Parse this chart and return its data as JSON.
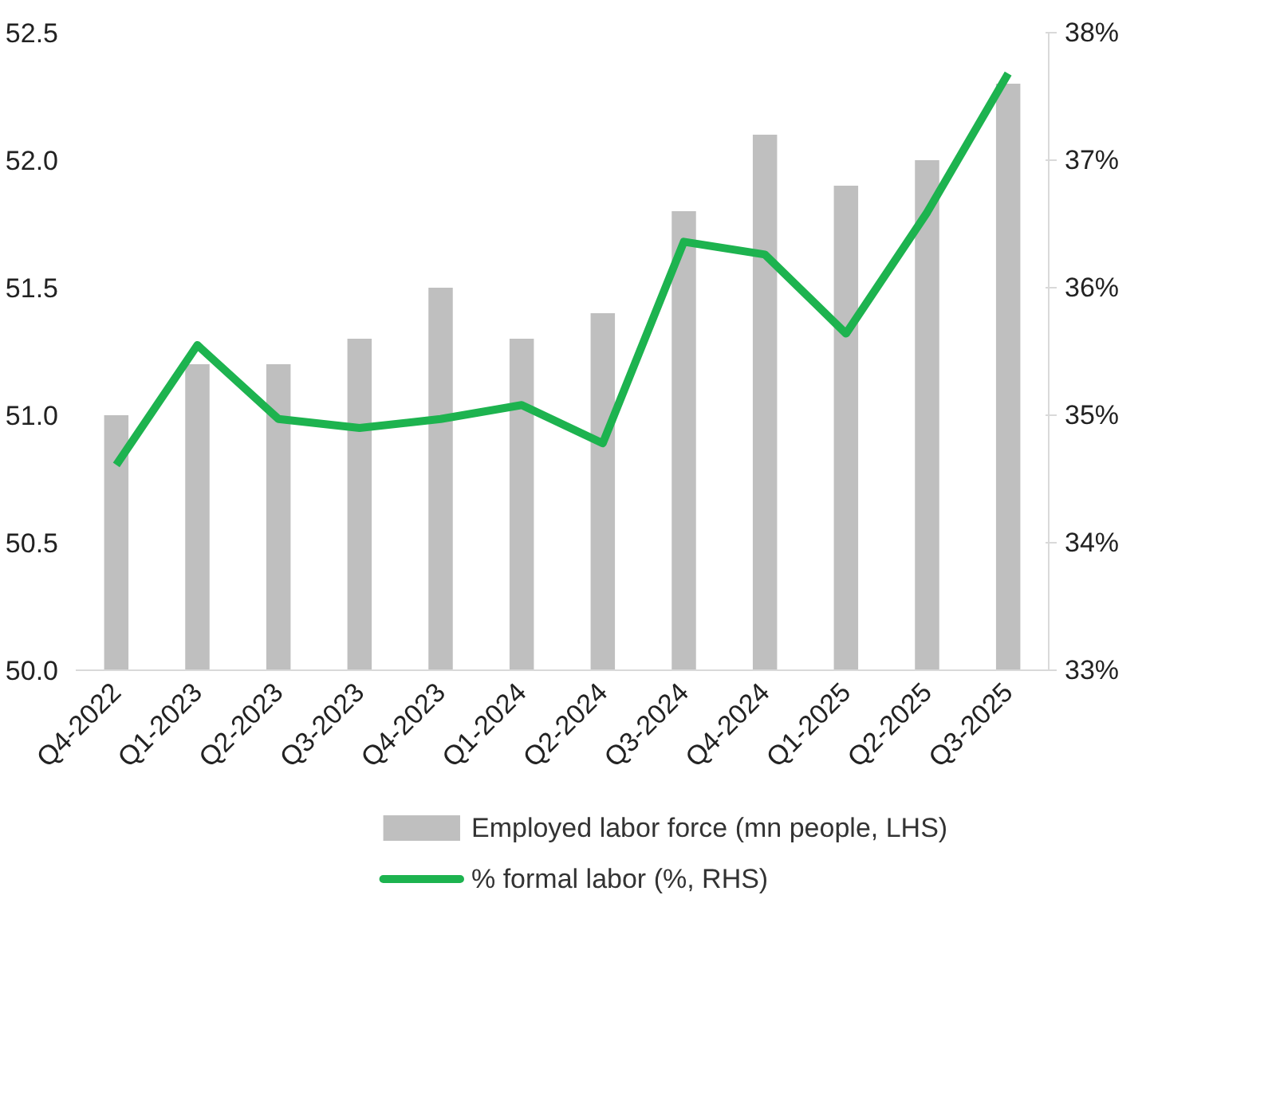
{
  "chart_data": {
    "type": "bar",
    "categories": [
      "Q4-2022",
      "Q1-2023",
      "Q2-2023",
      "Q3-2023",
      "Q4-2023",
      "Q1-2024",
      "Q2-2024",
      "Q3-2024",
      "Q4-2024",
      "Q1-2025",
      "Q2-2025",
      "Q3-2025"
    ],
    "series": [
      {
        "name": "Employed labor force (mn people, LHS)",
        "color": "#bfbfbf",
        "values": [
          51.0,
          51.2,
          51.2,
          51.3,
          51.5,
          51.3,
          51.4,
          51.8,
          52.1,
          51.9,
          52.0,
          52.3
        ]
      },
      {
        "name": "% formal labor (%, RHS)",
        "color": "#1db34f",
        "type": "line",
        "axis": "y2",
        "values": [
          34.61,
          35.55,
          34.97,
          34.9,
          34.97,
          35.08,
          34.78,
          36.36,
          36.26,
          35.64,
          36.59,
          37.68
        ]
      }
    ],
    "ylim": [
      50,
      52.5
    ],
    "yticks": [
      {
        "value": 50,
        "label": "50.0"
      },
      {
        "value": 50.5,
        "label": "50.5"
      },
      {
        "value": 51,
        "label": "51.0"
      },
      {
        "value": 51.5,
        "label": "51.5"
      },
      {
        "value": 52,
        "label": "52.0"
      },
      {
        "value": 52.5,
        "label": "52.5"
      }
    ],
    "y2lim": [
      33,
      38
    ],
    "y2ticks": [
      {
        "value": 33,
        "label": "33%"
      },
      {
        "value": 34,
        "label": "34%"
      },
      {
        "value": 35,
        "label": "35%"
      },
      {
        "value": 36,
        "label": "36%"
      },
      {
        "value": 37,
        "label": "37%"
      },
      {
        "value": 38,
        "label": "38%"
      }
    ],
    "grid": false,
    "legend": "bottom",
    "marker": "none",
    "line_style": "solid"
  }
}
